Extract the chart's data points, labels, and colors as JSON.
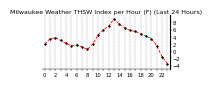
{
  "title": "Milwaukee Weather THSW Index per Hour (F) (Last 24 Hours)",
  "hours": [
    0,
    1,
    2,
    3,
    4,
    5,
    6,
    7,
    8,
    9,
    10,
    11,
    12,
    13,
    14,
    15,
    16,
    17,
    18,
    19,
    20,
    21,
    22,
    23
  ],
  "values": [
    2.0,
    3.5,
    3.8,
    3.0,
    2.2,
    1.5,
    1.8,
    1.2,
    0.5,
    2.0,
    4.5,
    6.0,
    7.0,
    9.0,
    7.5,
    6.5,
    5.8,
    5.5,
    4.8,
    4.2,
    3.5,
    1.5,
    -1.5,
    -3.5
  ],
  "line_color": "#ff0000",
  "marker_color": "#000000",
  "bg_color": "#ffffff",
  "ylim": [
    -5,
    10
  ],
  "yticks": [
    8,
    6,
    4,
    2,
    0,
    -2,
    -4
  ],
  "title_fontsize": 4.5,
  "tick_fontsize": 3.8,
  "grid_color": "#999999"
}
